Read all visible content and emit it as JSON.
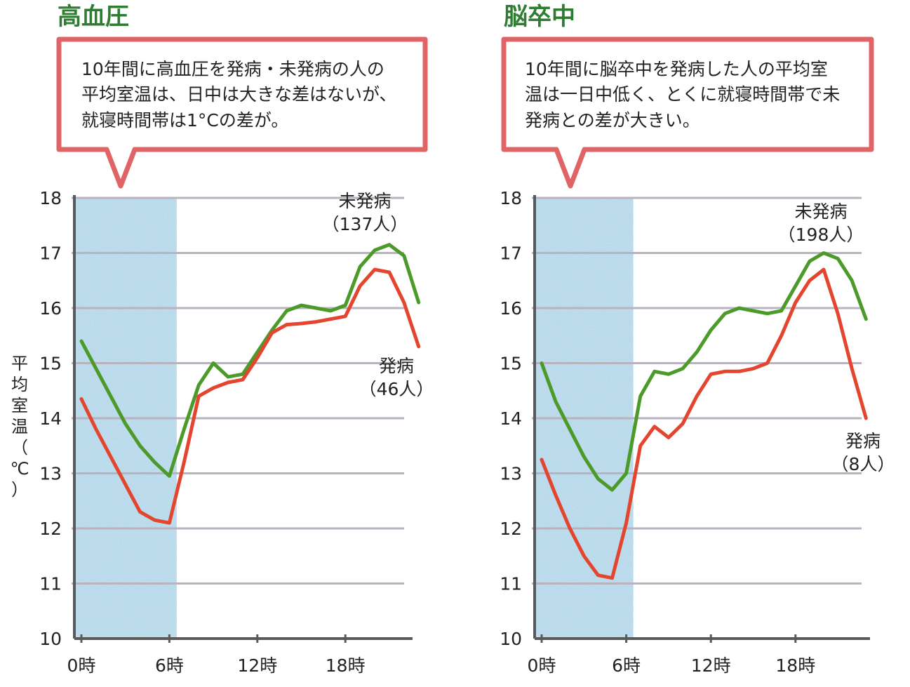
{
  "colors": {
    "title": "#2e7d32",
    "callout_border": "#e06466",
    "night_band": "#a9d3e7",
    "gridline": "#b9b3bf",
    "axis": "#5a5a5a",
    "series_healthy": "#4c9a2a",
    "series_sick": "#e4452e"
  },
  "y_axis_label_chars": [
    "平",
    "均",
    "室",
    "温",
    "（",
    "℃",
    "）"
  ],
  "chart_data": [
    {
      "type": "line",
      "title": "高血圧",
      "callout_lines": [
        "10年間に高血圧を発病・未発病の人の",
        "平均室温は、日中は大きな差はないが、",
        "就寝時間帯は1°Cの差が。"
      ],
      "ylim": [
        10,
        18
      ],
      "yticks": [
        "18",
        "17",
        "16",
        "15",
        "14",
        "13",
        "12",
        "11",
        "10"
      ],
      "xlim": [
        0,
        24
      ],
      "xticks": [
        {
          "value": 0,
          "label": "0時"
        },
        {
          "value": 6,
          "label": "6時"
        },
        {
          "value": 12,
          "label": "12時"
        },
        {
          "value": 18,
          "label": "18時"
        }
      ],
      "highlight_band_hours": [
        0,
        6.5
      ],
      "grid": true,
      "series": [
        {
          "key": "healthy",
          "label_lines": [
            "未発病",
            "（137人）"
          ],
          "x": [
            0,
            1,
            2,
            3,
            4,
            5,
            6,
            7,
            8,
            9,
            10,
            11,
            12,
            13,
            14,
            15,
            16,
            17,
            18,
            19,
            20,
            21,
            22,
            23
          ],
          "values": [
            15.4,
            14.9,
            14.4,
            13.9,
            13.5,
            13.2,
            12.95,
            13.8,
            14.6,
            15.0,
            14.75,
            14.8,
            15.2,
            15.6,
            15.95,
            16.05,
            16.0,
            15.95,
            16.05,
            16.75,
            17.05,
            17.15,
            16.95,
            16.1
          ]
        },
        {
          "key": "sick",
          "label_lines": [
            "発病",
            "（46人）"
          ],
          "x": [
            0,
            1,
            2,
            3,
            4,
            5,
            6,
            7,
            8,
            9,
            10,
            11,
            12,
            13,
            14,
            15,
            16,
            17,
            18,
            19,
            20,
            21,
            22,
            23
          ],
          "values": [
            14.35,
            13.8,
            13.3,
            12.8,
            12.3,
            12.15,
            12.1,
            13.2,
            14.4,
            14.55,
            14.65,
            14.7,
            15.1,
            15.55,
            15.7,
            15.72,
            15.75,
            15.8,
            15.85,
            16.4,
            16.7,
            16.65,
            16.1,
            15.3
          ]
        }
      ]
    },
    {
      "type": "line",
      "title": "脳卒中",
      "callout_lines": [
        "10年間に脳卒中を発病した人の平均室",
        "温は一日中低く、とくに就寝時間帯で未",
        "発病との差が大きい。"
      ],
      "ylim": [
        10,
        18
      ],
      "yticks": [
        "18",
        "17",
        "16",
        "15",
        "14",
        "13",
        "12",
        "11",
        "10"
      ],
      "xlim": [
        0,
        24
      ],
      "xticks": [
        {
          "value": 0,
          "label": "0時"
        },
        {
          "value": 6,
          "label": "6時"
        },
        {
          "value": 12,
          "label": "12時"
        },
        {
          "value": 18,
          "label": "18時"
        }
      ],
      "highlight_band_hours": [
        0,
        6.5
      ],
      "grid": true,
      "series": [
        {
          "key": "healthy",
          "label_lines": [
            "未発病",
            "（198人）"
          ],
          "x": [
            0,
            1,
            2,
            3,
            4,
            5,
            6,
            7,
            8,
            9,
            10,
            11,
            12,
            13,
            14,
            15,
            16,
            17,
            18,
            19,
            20,
            21,
            22,
            23
          ],
          "values": [
            15.0,
            14.3,
            13.8,
            13.3,
            12.9,
            12.7,
            13.0,
            14.4,
            14.85,
            14.8,
            14.9,
            15.2,
            15.6,
            15.9,
            16.0,
            15.95,
            15.9,
            15.95,
            16.4,
            16.85,
            17.0,
            16.9,
            16.5,
            15.8
          ]
        },
        {
          "key": "sick",
          "label_lines": [
            "発病",
            "（8人）"
          ],
          "x": [
            0,
            1,
            2,
            3,
            4,
            5,
            6,
            7,
            8,
            9,
            10,
            11,
            12,
            13,
            14,
            15,
            16,
            17,
            18,
            19,
            20,
            21,
            22,
            23
          ],
          "values": [
            13.25,
            12.6,
            12.0,
            11.5,
            11.15,
            11.1,
            12.1,
            13.5,
            13.85,
            13.65,
            13.9,
            14.4,
            14.8,
            14.85,
            14.85,
            14.9,
            15.0,
            15.5,
            16.1,
            16.5,
            16.7,
            15.9,
            14.9,
            14.0
          ]
        }
      ]
    }
  ]
}
